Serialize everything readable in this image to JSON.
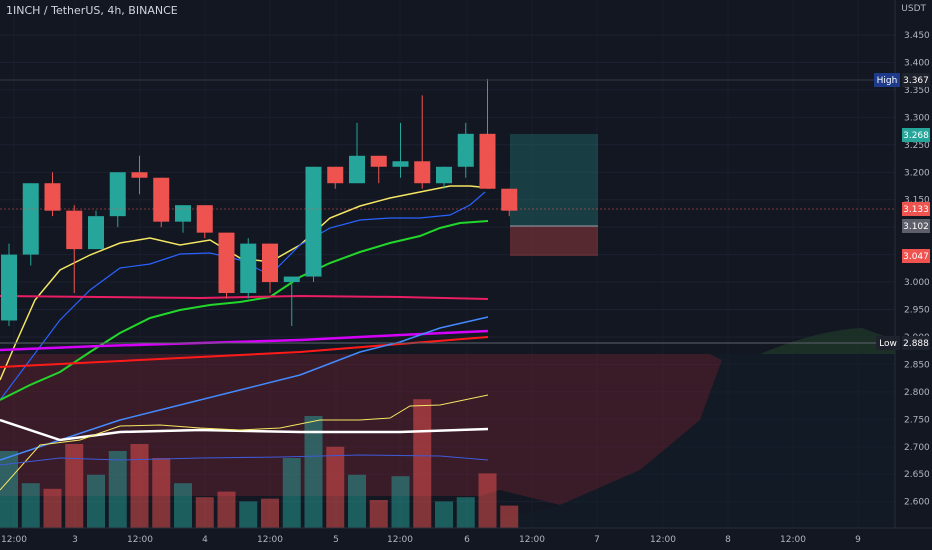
{
  "header": {
    "symbol_title": "1INCH / TetherUS, 4h, BINANCE",
    "currency": "USDT"
  },
  "price_axis": {
    "ticks": [
      "3.450",
      "3.400",
      "3.350",
      "3.300",
      "3.250",
      "3.200",
      "3.150",
      "3.100",
      "3.050",
      "3.000",
      "2.950",
      "2.900",
      "2.850",
      "2.800",
      "2.750",
      "2.700",
      "2.650",
      "2.600"
    ],
    "badges": {
      "high_label": "High",
      "high_value": "3.367",
      "target_value": "3.268",
      "current_value": "3.133",
      "entry_value": "3.102",
      "stop_value": "3.047",
      "low_label": "Low",
      "low_value": "2.888"
    }
  },
  "time_axis": {
    "labels": [
      "12:00",
      "3",
      "12:00",
      "4",
      "12:00",
      "5",
      "12:00",
      "6",
      "12:00",
      "7",
      "12:00",
      "8",
      "12:00",
      "9"
    ]
  },
  "colors": {
    "bg": "#131722",
    "up": "#26a69a",
    "down": "#ef5350",
    "yellow_ma": "#f5e663",
    "blue_ma": "#2962ff",
    "green_ma": "#22d62a",
    "pink_ma": "#e91e63",
    "magenta_ma": "#d500f9",
    "red_ma": "#ff1a1a",
    "white_ma": "#ffffff",
    "badge_dark": "#1e222d"
  },
  "chart_data": {
    "type": "candlestick",
    "symbol": "1INCH / TetherUS",
    "timeframe": "4h",
    "exchange": "BINANCE",
    "ylim": [
      2.59,
      3.48
    ],
    "candles": [
      {
        "o": 2.93,
        "h": 3.07,
        "l": 2.92,
        "c": 3.05
      },
      {
        "o": 3.05,
        "h": 3.18,
        "l": 3.03,
        "c": 3.18
      },
      {
        "o": 3.18,
        "h": 3.2,
        "l": 3.12,
        "c": 3.13
      },
      {
        "o": 3.13,
        "h": 3.14,
        "l": 2.98,
        "c": 3.06
      },
      {
        "o": 3.06,
        "h": 3.13,
        "l": 3.06,
        "c": 3.12
      },
      {
        "o": 3.12,
        "h": 3.2,
        "l": 3.1,
        "c": 3.2
      },
      {
        "o": 3.2,
        "h": 3.23,
        "l": 3.16,
        "c": 3.19
      },
      {
        "o": 3.19,
        "h": 3.19,
        "l": 3.1,
        "c": 3.11
      },
      {
        "o": 3.11,
        "h": 3.14,
        "l": 3.09,
        "c": 3.14
      },
      {
        "o": 3.14,
        "h": 3.14,
        "l": 3.08,
        "c": 3.09
      },
      {
        "o": 3.09,
        "h": 3.09,
        "l": 2.97,
        "c": 2.98
      },
      {
        "o": 2.98,
        "h": 3.08,
        "l": 2.97,
        "c": 3.07
      },
      {
        "o": 3.07,
        "h": 3.07,
        "l": 2.98,
        "c": 3.0
      },
      {
        "o": 3.0,
        "h": 3.01,
        "l": 2.92,
        "c": 3.01
      },
      {
        "o": 3.01,
        "h": 3.21,
        "l": 3.0,
        "c": 3.21
      },
      {
        "o": 3.21,
        "h": 3.21,
        "l": 3.17,
        "c": 3.18
      },
      {
        "o": 3.18,
        "h": 3.29,
        "l": 3.18,
        "c": 3.23
      },
      {
        "o": 3.23,
        "h": 3.23,
        "l": 3.18,
        "c": 3.21
      },
      {
        "o": 3.21,
        "h": 3.29,
        "l": 3.19,
        "c": 3.22
      },
      {
        "o": 3.22,
        "h": 3.34,
        "l": 3.17,
        "c": 3.18
      },
      {
        "o": 3.18,
        "h": 3.21,
        "l": 3.17,
        "c": 3.21
      },
      {
        "o": 3.21,
        "h": 3.29,
        "l": 3.19,
        "c": 3.27
      },
      {
        "o": 3.27,
        "h": 3.37,
        "l": 3.17,
        "c": 3.17
      },
      {
        "o": 3.17,
        "h": 3.17,
        "l": 3.12,
        "c": 3.13
      }
    ],
    "volume_relative": [
      0.55,
      0.32,
      0.28,
      0.6,
      0.38,
      0.55,
      0.6,
      0.5,
      0.32,
      0.22,
      0.26,
      0.19,
      0.21,
      0.5,
      0.8,
      0.58,
      0.38,
      0.2,
      0.37,
      0.92,
      0.19,
      0.22,
      0.39,
      0.16
    ],
    "position": {
      "target": 3.268,
      "entry": 3.102,
      "stop": 3.047
    },
    "high": 3.367,
    "low": 2.888,
    "current_price": 3.133
  }
}
